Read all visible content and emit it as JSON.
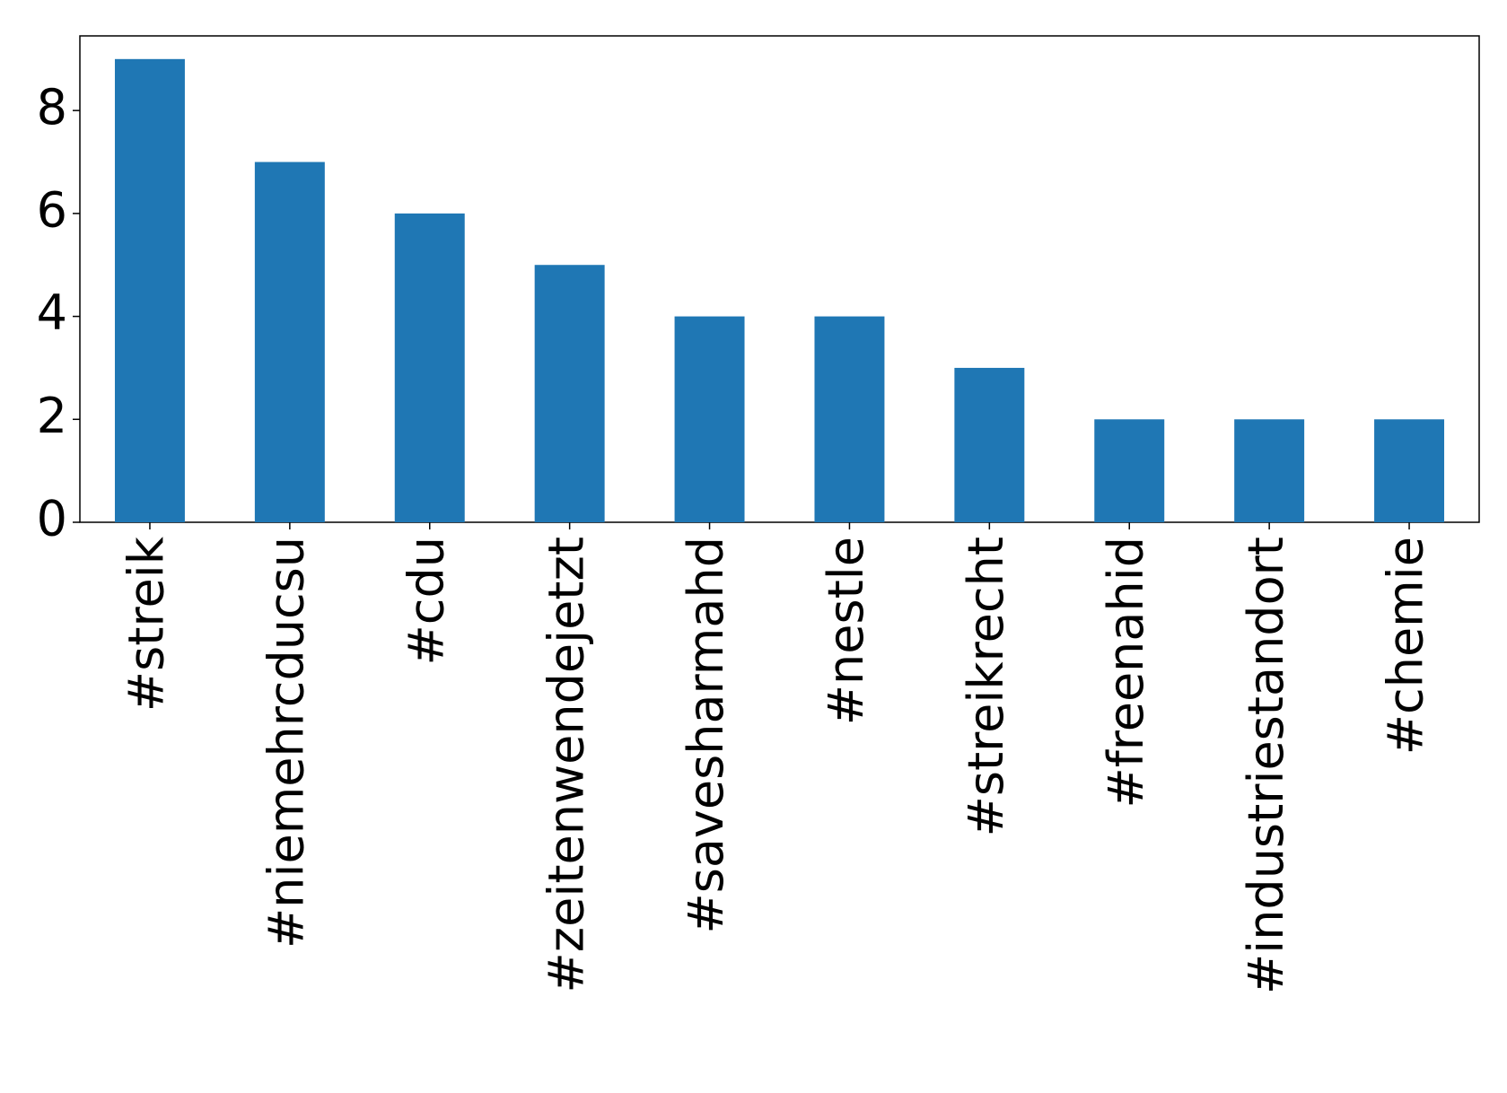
{
  "chart_data": {
    "type": "bar",
    "categories": [
      "#streik",
      "#niemehrcducsu",
      "#cdu",
      "#zeitenwendejetzt",
      "#savesharmahd",
      "#nestle",
      "#streikrecht",
      "#freenahid",
      "#industriestandort",
      "#chemie"
    ],
    "values": [
      9,
      7,
      6,
      5,
      4,
      4,
      3,
      2,
      2,
      2
    ],
    "color": "#1f77b4",
    "ylim": [
      0,
      9.45
    ],
    "yticks": [
      0,
      2,
      4,
      6,
      8
    ],
    "grid": false
  }
}
